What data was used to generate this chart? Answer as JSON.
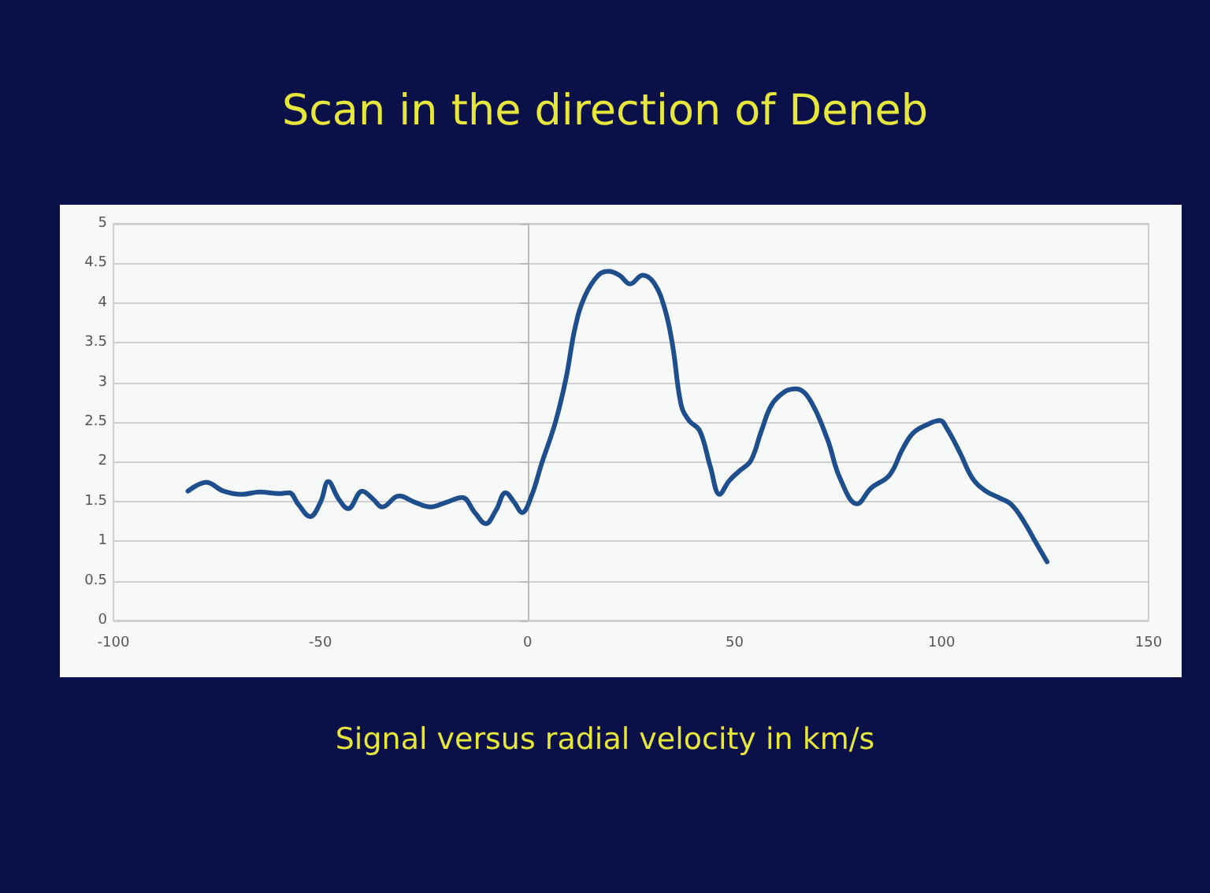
{
  "chart_data": {
    "type": "line",
    "title": "Scan in the direction of Deneb",
    "xlabel": "Signal versus radial velocity in km/s",
    "xlim": [
      -100,
      150
    ],
    "xticks": [
      -100,
      -50,
      0,
      50,
      100,
      150
    ],
    "ylim": [
      0,
      5
    ],
    "yticks": [
      0,
      0.5,
      1,
      1.5,
      2,
      2.5,
      3,
      3.5,
      4,
      4.5,
      5
    ],
    "grid": "y",
    "marker": "none",
    "line_style": "solid",
    "series": [
      {
        "color": "#1f4e8c",
        "x": [
          -82,
          -77.6,
          -73.4,
          -69,
          -64.6,
          -60.1,
          -57.6,
          -55.3,
          -52.5,
          -50,
          -48.1,
          -45.6,
          -43.3,
          -39.9,
          -37.3,
          -35.1,
          -31,
          -27.2,
          -23.4,
          -19.6,
          -15.8,
          -12.7,
          -10.1,
          -7.6,
          -5.3,
          -3.2,
          -1.3,
          0.9,
          3.5,
          6.7,
          9.3,
          11.5,
          13.8,
          17.1,
          19.6,
          22.2,
          24.8,
          27.8,
          30.6,
          33.2,
          35.1,
          37.1,
          39,
          41.6,
          44.2,
          46.4,
          48.7,
          51.3,
          53.9,
          56.5,
          59,
          62.3,
          64.9,
          68.1,
          72.4,
          75.5,
          79.6,
          83,
          87.4,
          90.6,
          93.1,
          96.2,
          99.6,
          101.3,
          104.4,
          107.5,
          110.7,
          113.8,
          116.9,
          120.1,
          122.6,
          125.5
        ],
        "values": [
          1.63,
          1.74,
          1.63,
          1.59,
          1.62,
          1.6,
          1.61,
          1.46,
          1.31,
          1.49,
          1.75,
          1.53,
          1.41,
          1.63,
          1.53,
          1.43,
          1.57,
          1.49,
          1.43,
          1.49,
          1.55,
          1.36,
          1.22,
          1.39,
          1.61,
          1.49,
          1.36,
          1.56,
          1.99,
          2.49,
          3.05,
          3.69,
          4.08,
          4.35,
          4.4,
          4.35,
          4.24,
          4.35,
          4.25,
          3.92,
          3.45,
          2.72,
          2.52,
          2.39,
          1.93,
          1.59,
          1.76,
          1.89,
          2.01,
          2.39,
          2.72,
          2.89,
          2.92,
          2.79,
          2.29,
          1.79,
          1.47,
          1.67,
          1.83,
          2.16,
          2.36,
          2.46,
          2.52,
          2.42,
          2.12,
          1.79,
          1.63,
          1.55,
          1.46,
          1.23,
          1,
          0.74
        ]
      }
    ]
  }
}
